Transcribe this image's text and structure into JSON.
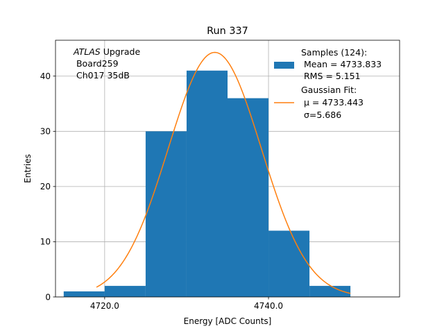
{
  "chart_data": {
    "type": "bar",
    "title": "Run 337",
    "xlabel": "Energy [ADC Counts]",
    "ylabel": "Entries",
    "xlim": [
      4714.0,
      4756.0
    ],
    "ylim": [
      0,
      46.5
    ],
    "grid": true,
    "legend_position": "top-right",
    "xticks": [
      4720.0,
      4740.0
    ],
    "xtick_labels": [
      "4720.0",
      "4740.0"
    ],
    "yticks": [
      0,
      10,
      20,
      30,
      40
    ],
    "ytick_labels": [
      "0",
      "10",
      "20",
      "30",
      "40"
    ],
    "bin_edges": [
      4715,
      4720,
      4725,
      4730,
      4735,
      4740,
      4745,
      4750
    ],
    "values": [
      1,
      2,
      30,
      41,
      36,
      12,
      2
    ],
    "bar_color": "#1f77b4",
    "fit": {
      "mu": 4733.443,
      "sigma": 5.686,
      "amplitude": 44.3,
      "x_range": [
        4719,
        4750
      ],
      "color": "#ff7f0e"
    },
    "annotation": {
      "italic": "ATLAS",
      "rest": " Upgrade",
      "line2": " Board259",
      "line3": " Ch017 35dB"
    },
    "legend": {
      "hist_lines": [
        "Samples (124):",
        " Mean = 4733.833",
        " RMS = 5.151"
      ],
      "fit_lines": [
        "Gaussian Fit:",
        " μ = 4733.443",
        " σ=5.686"
      ]
    }
  }
}
